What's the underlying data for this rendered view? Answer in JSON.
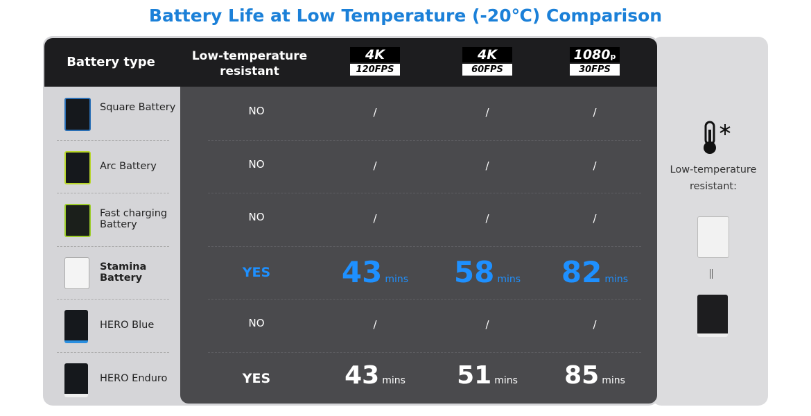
{
  "title": "Battery Life at Low Temperature (-20℃) Comparison",
  "table": {
    "header": {
      "battery_type": "Battery type",
      "resistant": "Low-temperature resistant",
      "modes": [
        {
          "top": "4K",
          "bottom": "120FPS"
        },
        {
          "top": "4K",
          "bottom": "60FPS"
        },
        {
          "top": "1080",
          "suffix": "p",
          "bottom": "30FPS"
        }
      ]
    },
    "rows": [
      {
        "battery": "Square Battery",
        "resistant": "NO",
        "values": [
          "/",
          "/",
          "/"
        ]
      },
      {
        "battery": "Arc Battery",
        "resistant": "NO",
        "values": [
          "/",
          "/",
          "/"
        ]
      },
      {
        "battery": "Fast charging Battery",
        "resistant": "NO",
        "values": [
          "/",
          "/",
          "/"
        ]
      },
      {
        "battery": "Stamina Battery",
        "resistant": "YES",
        "values": [
          43,
          58,
          82
        ],
        "unit": "mins"
      },
      {
        "battery": "HERO Blue",
        "resistant": "NO",
        "values": [
          "/",
          "/",
          "/"
        ]
      },
      {
        "battery": "HERO Enduro",
        "resistant": "YES",
        "values": [
          43,
          51,
          85
        ],
        "unit": "mins"
      }
    ]
  },
  "side_panel": {
    "label": "Low-temperature resistant:"
  }
}
